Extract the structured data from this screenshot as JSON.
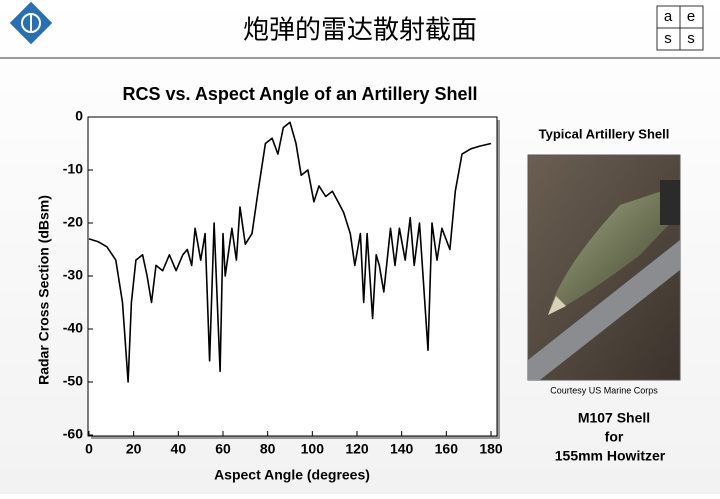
{
  "header": {
    "title": "炮弹的雷达散射截面",
    "logo_letters": [
      "a",
      "e",
      "s",
      "s"
    ]
  },
  "chart_data": {
    "type": "line",
    "title": "RCS vs. Aspect Angle of an Artillery Shell",
    "x_label": "Aspect Angle (degrees)",
    "y_label": "Radar Cross Section (dBsm)",
    "x": [
      0,
      4,
      8,
      12,
      15,
      17.5,
      19,
      21,
      24,
      26,
      28,
      30,
      33,
      36,
      39,
      42,
      44,
      46,
      47.5,
      50,
      52,
      54,
      56,
      58.7,
      60,
      61,
      64,
      66,
      67.6,
      70,
      73,
      75.7,
      79,
      82,
      84.6,
      87,
      90,
      92.7,
      95,
      98,
      100.7,
      103,
      106,
      109,
      111.5,
      114,
      117,
      119,
      121.5,
      123,
      124.5,
      127,
      128.6,
      130,
      132,
      135,
      137,
      139,
      141.6,
      143.8,
      145.6,
      148,
      151.8,
      153.6,
      155.8,
      158,
      161.6,
      164,
      167,
      171,
      175,
      180
    ],
    "values": [
      -23,
      -23.5,
      -24.5,
      -27,
      -35,
      -50,
      -35,
      -27,
      -26,
      -30,
      -35,
      -28,
      -29,
      -26,
      -29,
      -26,
      -25,
      -28,
      -21,
      -27,
      -22,
      -46,
      -20,
      -48,
      -22,
      -30,
      -21,
      -27,
      -17,
      -24,
      -22,
      -14,
      -5,
      -4,
      -7,
      -2,
      -1,
      -5,
      -11,
      -10,
      -16,
      -13,
      -15,
      -14,
      -16,
      -18,
      -22,
      -28,
      -22,
      -35,
      -22,
      -38,
      -26,
      -28,
      -33,
      -21,
      -28,
      -21,
      -27,
      -19,
      -28,
      -20,
      -44,
      -20,
      -27,
      -21,
      -25,
      -14,
      -7,
      -6,
      -5.5,
      -5
    ],
    "color": "#000000",
    "xlim": [
      0,
      180
    ],
    "xticks": [
      0,
      20,
      40,
      60,
      80,
      100,
      120,
      140,
      160,
      180
    ],
    "ylim": [
      -60,
      0
    ],
    "yticks": [
      0,
      -10,
      -20,
      -30,
      -40,
      -50,
      -60
    ]
  },
  "sidebar": {
    "caption": "Typical Artillery Shell",
    "credit": "Courtesy US Marine Corps",
    "lines": [
      "M107 Shell",
      "for",
      "155mm Howitzer"
    ]
  }
}
